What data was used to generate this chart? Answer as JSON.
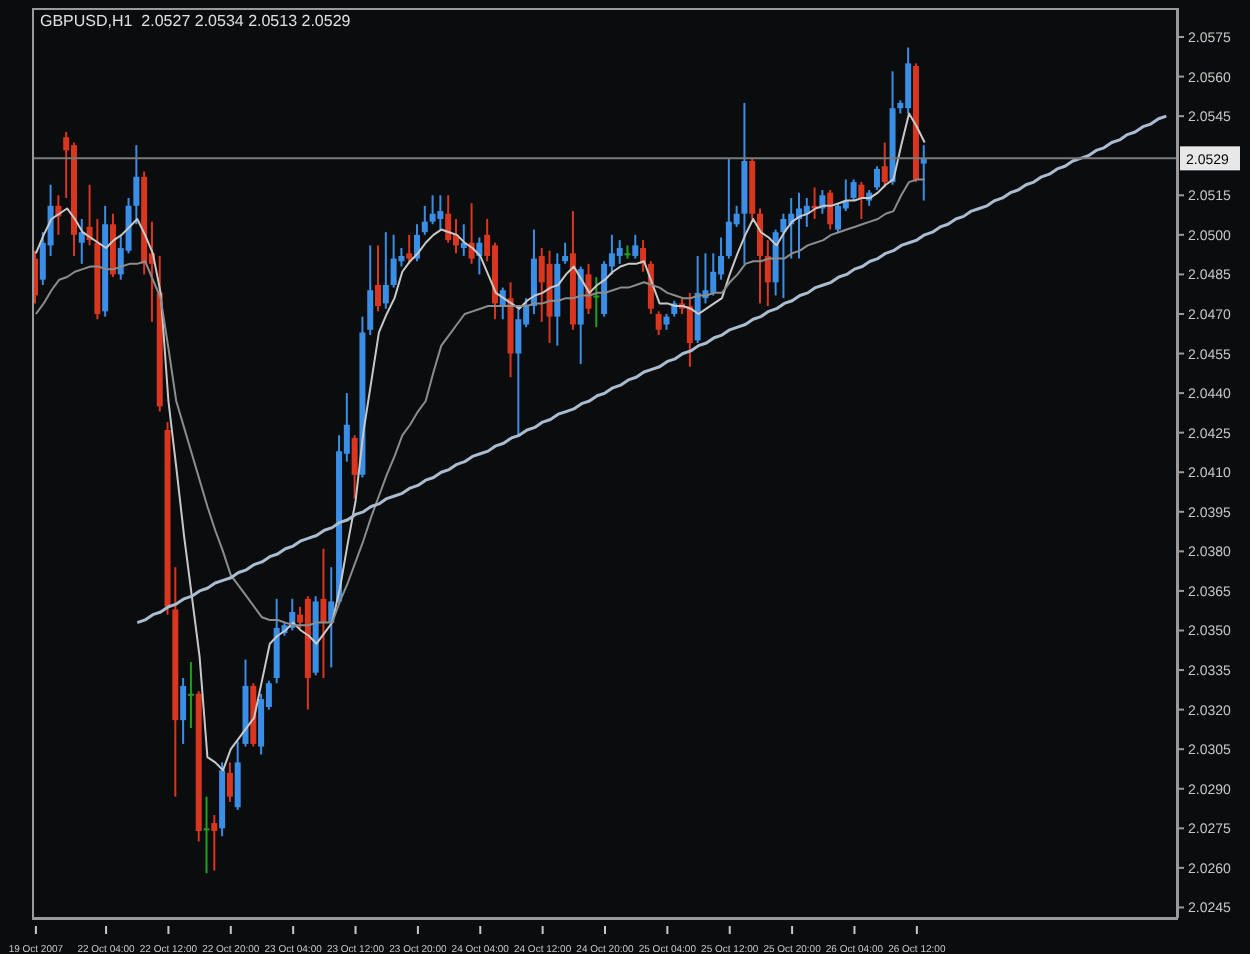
{
  "chart_data": {
    "type": "candlestick",
    "title": "GBPUSD,H1  2.0527 2.0534 2.0513 2.0529",
    "categories": [
      "19 Oct 2007",
      null,
      null,
      null,
      null,
      null,
      null,
      null,
      null,
      "22 Oct 04:00",
      null,
      null,
      null,
      null,
      null,
      null,
      null,
      "22 Oct 12:00",
      null,
      null,
      null,
      null,
      null,
      null,
      null,
      "22 Oct 20:00",
      null,
      null,
      null,
      null,
      null,
      null,
      null,
      "23 Oct 04:00",
      null,
      null,
      null,
      null,
      null,
      null,
      null,
      "23 Oct 12:00",
      null,
      null,
      null,
      null,
      null,
      null,
      null,
      "23 Oct 20:00",
      null,
      null,
      null,
      null,
      null,
      null,
      null,
      "24 Oct 04:00",
      null,
      null,
      null,
      null,
      null,
      null,
      null,
      "24 Oct 12:00",
      null,
      null,
      null,
      null,
      null,
      null,
      null,
      "24 Oct 20:00",
      null,
      null,
      null,
      null,
      null,
      null,
      null,
      "25 Oct 04:00",
      null,
      null,
      null,
      null,
      null,
      null,
      null,
      "25 Oct 12:00",
      null,
      null,
      null,
      null,
      null,
      null,
      null,
      "25 Oct 20:00",
      null,
      null,
      null,
      null,
      null,
      null,
      null,
      "26 Oct 04:00",
      null,
      null,
      null,
      null,
      null,
      null,
      null,
      "26 Oct 12:00",
      null,
      null,
      null,
      null,
      null,
      null,
      null,
      null,
      null,
      null,
      null,
      null,
      null,
      null,
      null,
      null,
      null,
      null,
      null,
      null,
      null,
      null,
      null,
      null,
      null,
      null,
      null,
      null,
      null,
      null,
      null,
      null,
      null
    ],
    "ohlc": [
      [
        2.0491,
        2.0494,
        2.0474,
        2.0477
      ],
      [
        2.0483,
        2.0501,
        2.0481,
        2.0497
      ],
      [
        2.0496,
        2.0519,
        2.0492,
        2.0511
      ],
      [
        2.0511,
        2.0515,
        2.05,
        2.0507
      ],
      [
        2.0537,
        2.0539,
        2.0514,
        2.0532
      ],
      [
        2.0534,
        2.0535,
        2.0492,
        2.05
      ],
      [
        2.0497,
        2.0506,
        2.0489,
        2.0501
      ],
      [
        2.0503,
        2.0519,
        2.0496,
        2.0498
      ],
      [
        2.0497,
        2.0506,
        2.0468,
        2.047
      ],
      [
        2.0471,
        2.0511,
        2.0469,
        2.0504
      ],
      [
        2.0504,
        2.0508,
        2.0484,
        2.0485
      ],
      [
        2.0485,
        2.05,
        2.0483,
        2.0495
      ],
      [
        2.0494,
        2.0514,
        2.0493,
        2.0511
      ],
      [
        2.0511,
        2.0534,
        2.0504,
        2.0522
      ],
      [
        2.0522,
        2.0524,
        2.0485,
        2.0489
      ],
      [
        2.0493,
        2.0505,
        2.0467,
        2.0489
      ],
      [
        2.0478,
        2.0492,
        2.0433,
        2.0435
      ],
      [
        2.0426,
        2.0429,
        2.0356,
        2.0359
      ],
      [
        2.0358,
        2.0374,
        2.0287,
        2.0316
      ],
      [
        2.0316,
        2.0332,
        2.0307,
        2.0329
      ],
      [
        2.0326,
        2.0338,
        2.0313,
        2.0326
      ],
      [
        2.0326,
        2.0327,
        2.027,
        2.0274
      ],
      [
        2.0275,
        2.0287,
        2.0258,
        2.0275
      ],
      [
        2.0277,
        2.028,
        2.0259,
        2.0274
      ],
      [
        2.0275,
        2.03,
        2.0272,
        2.0297
      ],
      [
        2.0296,
        2.03,
        2.0285,
        2.0287
      ],
      [
        2.0283,
        2.0308,
        2.0282,
        2.03
      ],
      [
        2.0307,
        2.0339,
        2.0306,
        2.0329
      ],
      [
        2.0329,
        2.033,
        2.0306,
        2.0307
      ],
      [
        2.0306,
        2.0326,
        2.0303,
        2.0324
      ],
      [
        2.0321,
        2.0331,
        2.032,
        2.033
      ],
      [
        2.0332,
        2.0362,
        2.033,
        2.0351
      ],
      [
        2.0349,
        2.0353,
        2.0348,
        2.0352
      ],
      [
        2.0351,
        2.0362,
        2.035,
        2.0357
      ],
      [
        2.0356,
        2.0359,
        2.0351,
        2.0353
      ],
      [
        2.0362,
        2.0363,
        2.032,
        2.0332
      ],
      [
        2.0334,
        2.0363,
        2.0333,
        2.0361
      ],
      [
        2.0362,
        2.0381,
        2.0332,
        2.0353
      ],
      [
        2.0353,
        2.0374,
        2.0336,
        2.0361
      ],
      [
        2.0361,
        2.0424,
        2.036,
        2.0418
      ],
      [
        2.0417,
        2.044,
        2.0414,
        2.0428
      ],
      [
        2.0423,
        2.0424,
        2.04,
        2.0409
      ],
      [
        2.0409,
        2.0469,
        2.0408,
        2.0463
      ],
      [
        2.0464,
        2.0496,
        2.0462,
        2.0479
      ],
      [
        2.0481,
        2.0496,
        2.0471,
        2.0473
      ],
      [
        2.0474,
        2.0501,
        2.0472,
        2.0481
      ],
      [
        2.0481,
        2.05,
        2.048,
        2.0491
      ],
      [
        2.049,
        2.0495,
        2.0488,
        2.0492
      ],
      [
        2.0493,
        2.05,
        2.0489,
        2.0491
      ],
      [
        2.0491,
        2.0504,
        2.049,
        2.05
      ],
      [
        2.0501,
        2.0511,
        2.05,
        2.0505
      ],
      [
        2.0505,
        2.0515,
        2.0504,
        2.0508
      ],
      [
        2.0506,
        2.0515,
        2.0502,
        2.0509
      ],
      [
        2.0508,
        2.0515,
        2.0497,
        2.0498
      ],
      [
        2.05,
        2.0506,
        2.0493,
        2.0496
      ],
      [
        2.0495,
        2.0504,
        2.0492,
        2.0497
      ],
      [
        2.0497,
        2.0512,
        2.0489,
        2.0491
      ],
      [
        2.0492,
        2.0499,
        2.0485,
        2.0497
      ],
      [
        2.05,
        2.0506,
        2.049,
        2.0492
      ],
      [
        2.0496,
        2.0497,
        2.0468,
        2.0474
      ],
      [
        2.0473,
        2.048,
        2.0468,
        2.0479
      ],
      [
        2.0476,
        2.0482,
        2.0446,
        2.0455
      ],
      [
        2.0455,
        2.0473,
        2.0424,
        2.0468
      ],
      [
        2.0466,
        2.0476,
        2.0465,
        2.0473
      ],
      [
        2.0473,
        2.0502,
        2.047,
        2.0491
      ],
      [
        2.0492,
        2.0495,
        2.0467,
        2.0482
      ],
      [
        2.0489,
        2.0494,
        2.0459,
        2.0469
      ],
      [
        2.0469,
        2.0493,
        2.0458,
        2.0489
      ],
      [
        2.049,
        2.0497,
        2.0489,
        2.0492
      ],
      [
        2.0493,
        2.0509,
        2.0464,
        2.0466
      ],
      [
        2.0466,
        2.0488,
        2.0451,
        2.0487
      ],
      [
        2.0485,
        2.0489,
        2.047,
        2.0472
      ],
      [
        2.0477,
        2.0484,
        2.0465,
        2.0477
      ],
      [
        2.047,
        2.049,
        2.0469,
        2.0489
      ],
      [
        2.0488,
        2.05,
        2.0485,
        2.0493
      ],
      [
        2.0492,
        2.0498,
        2.0489,
        2.0495
      ],
      [
        2.0493,
        2.0496,
        2.0491,
        2.0493
      ],
      [
        2.0492,
        2.05,
        2.0491,
        2.0496
      ],
      [
        2.0495,
        2.0498,
        2.0486,
        2.0489
      ],
      [
        2.0489,
        2.049,
        2.047,
        2.0472
      ],
      [
        2.047,
        2.0471,
        2.0462,
        2.0464
      ],
      [
        2.0466,
        2.047,
        2.0464,
        2.0469
      ],
      [
        2.047,
        2.0475,
        2.0469,
        2.0474
      ],
      [
        2.0474,
        2.0476,
        2.047,
        2.0472
      ],
      [
        2.0473,
        2.0478,
        2.045,
        2.0459
      ],
      [
        2.046,
        2.0492,
        2.0459,
        2.0478
      ],
      [
        2.0476,
        2.0493,
        2.0474,
        2.0479
      ],
      [
        2.0478,
        2.0493,
        2.0477,
        2.0486
      ],
      [
        2.0485,
        2.0499,
        2.0483,
        2.0492
      ],
      [
        2.0492,
        2.0529,
        2.0491,
        2.0505
      ],
      [
        2.0504,
        2.0511,
        2.0503,
        2.0508
      ],
      [
        2.0508,
        2.055,
        2.0489,
        2.0528
      ],
      [
        2.0528,
        2.0529,
        2.0506,
        2.0508
      ],
      [
        2.0508,
        2.051,
        2.0474,
        2.0492
      ],
      [
        2.0492,
        2.0498,
        2.0473,
        2.0482
      ],
      [
        2.0482,
        2.0502,
        2.0477,
        2.0501
      ],
      [
        2.0501,
        2.0508,
        2.0476,
        2.0506
      ],
      [
        2.0504,
        2.0514,
        2.0491,
        2.0508
      ],
      [
        2.0506,
        2.0516,
        2.0491,
        2.051
      ],
      [
        2.0508,
        2.0514,
        2.0503,
        2.0511
      ],
      [
        2.0511,
        2.0518,
        2.0506,
        2.051
      ],
      [
        2.051,
        2.0517,
        2.0508,
        2.0515
      ],
      [
        2.0516,
        2.0517,
        2.0502,
        2.0504
      ],
      [
        2.0502,
        2.0512,
        2.0501,
        2.0511
      ],
      [
        2.051,
        2.0521,
        2.0509,
        2.0513
      ],
      [
        2.0514,
        2.0521,
        2.0513,
        2.052
      ],
      [
        2.0519,
        2.052,
        2.0506,
        2.0514
      ],
      [
        2.0513,
        2.0517,
        2.0511,
        2.0516
      ],
      [
        2.0518,
        2.0526,
        2.0517,
        2.0525
      ],
      [
        2.0526,
        2.0535,
        2.0518,
        2.052
      ],
      [
        2.052,
        2.0562,
        2.0519,
        2.0548
      ],
      [
        2.0548,
        2.0551,
        2.0546,
        2.055
      ],
      [
        2.0548,
        2.0571,
        2.0546,
        2.0565
      ],
      [
        2.0564,
        2.0565,
        2.052,
        2.0521
      ],
      [
        2.0527,
        2.0534,
        2.0513,
        2.0529
      ],
      null,
      null,
      null,
      null,
      null,
      null,
      null,
      null,
      null,
      null,
      null,
      null,
      null,
      null,
      null,
      null,
      null,
      null,
      null,
      null,
      null,
      null,
      null,
      null,
      null,
      null,
      null,
      null,
      null,
      null,
      null,
      null
    ],
    "colors": [
      "#d8361f",
      "#3a8ee6",
      "#3a8ee6",
      "#d8361f",
      "#d8361f",
      "#d8361f",
      "#3a8ee6",
      "#d8361f",
      "#d8361f",
      "#3a8ee6",
      "#d8361f",
      "#3a8ee6",
      "#3a8ee6",
      "#3a8ee6",
      "#d8361f",
      "#d8361f",
      "#d8361f",
      "#d8361f",
      "#d8361f",
      "#3a8ee6",
      "#22a022",
      "#d8361f",
      "#22a022",
      "#d8361f",
      "#3a8ee6",
      "#d8361f",
      "#3a8ee6",
      "#3a8ee6",
      "#d8361f",
      "#3a8ee6",
      "#3a8ee6",
      "#3a8ee6",
      "#3a8ee6",
      "#3a8ee6",
      "#d8361f",
      "#d8361f",
      "#3a8ee6",
      "#d8361f",
      "#3a8ee6",
      "#3a8ee6",
      "#3a8ee6",
      "#d8361f",
      "#3a8ee6",
      "#3a8ee6",
      "#d8361f",
      "#3a8ee6",
      "#3a8ee6",
      "#3a8ee6",
      "#d8361f",
      "#3a8ee6",
      "#3a8ee6",
      "#3a8ee6",
      "#3a8ee6",
      "#d8361f",
      "#d8361f",
      "#3a8ee6",
      "#d8361f",
      "#3a8ee6",
      "#d8361f",
      "#d8361f",
      "#3a8ee6",
      "#d8361f",
      "#3a8ee6",
      "#3a8ee6",
      "#3a8ee6",
      "#d8361f",
      "#d8361f",
      "#3a8ee6",
      "#3a8ee6",
      "#d8361f",
      "#3a8ee6",
      "#d8361f",
      "#22a022",
      "#3a8ee6",
      "#3a8ee6",
      "#3a8ee6",
      "#22a022",
      "#3a8ee6",
      "#d8361f",
      "#d8361f",
      "#d8361f",
      "#3a8ee6",
      "#3a8ee6",
      "#d8361f",
      "#d8361f",
      "#3a8ee6",
      "#3a8ee6",
      "#3a8ee6",
      "#3a8ee6",
      "#3a8ee6",
      "#3a8ee6",
      "#3a8ee6",
      "#d8361f",
      "#d8361f",
      "#d8361f",
      "#3a8ee6",
      "#3a8ee6",
      "#3a8ee6",
      "#3a8ee6",
      "#3a8ee6",
      "#d8361f",
      "#3a8ee6",
      "#d8361f",
      "#3a8ee6",
      "#3a8ee6",
      "#3a8ee6",
      "#d8361f",
      "#3a8ee6",
      "#3a8ee6",
      "#d8361f",
      "#3a8ee6",
      "#3a8ee6",
      "#3a8ee6",
      "#d8361f",
      "#3a8ee6",
      null,
      null,
      null,
      null,
      null,
      null,
      null,
      null,
      null,
      null,
      null,
      null,
      null,
      null,
      null,
      null,
      null,
      null,
      null,
      null,
      null,
      null,
      null,
      null,
      null,
      null,
      null,
      null,
      null,
      null,
      null,
      null
    ],
    "series": [
      {
        "type": "line",
        "color": "#c8c8c8",
        "values": [
          2.0493,
          2.05,
          2.0506,
          2.0508,
          2.051,
          2.0506,
          2.0501,
          2.0499,
          2.0497,
          2.0495,
          2.0498,
          2.05,
          2.0503,
          2.0506,
          2.05,
          2.0493,
          2.0478,
          2.0437,
          2.0412,
          2.0386,
          2.0363,
          2.034,
          2.0302,
          2.03,
          2.0297,
          2.0305,
          2.0309,
          2.0313,
          2.0317,
          2.0331,
          2.0345,
          2.0348,
          2.035,
          2.0353,
          2.035,
          2.0348,
          2.0345,
          2.0349,
          2.0353,
          2.0366,
          2.0383,
          2.0399,
          2.0425,
          2.0444,
          2.0463,
          2.047,
          2.0476,
          2.0486,
          2.049,
          2.0493,
          2.0497,
          2.05,
          2.0502,
          2.0501,
          2.05,
          2.0497,
          2.0495,
          2.0492,
          2.0485,
          2.0478,
          2.0476,
          2.0474,
          2.0472,
          2.0475,
          2.0477,
          2.0478,
          2.048,
          2.0481,
          2.0485,
          2.0488,
          2.0483,
          2.0478,
          2.0481,
          2.0483,
          2.0486,
          2.0488,
          2.0489,
          2.0489,
          2.049,
          2.0482,
          2.0474,
          2.0474,
          2.0473,
          2.0473,
          2.0472,
          2.047,
          2.0472,
          2.0474,
          2.0476,
          2.0485,
          2.0493,
          2.05,
          2.0506,
          2.0501,
          2.0499,
          2.0496,
          2.0501,
          2.0505,
          2.0507,
          2.0508,
          2.051,
          2.0511,
          2.0511,
          2.0512,
          2.0513,
          2.0513,
          2.0514,
          2.0514,
          2.0516,
          2.0519,
          2.0521,
          2.0534,
          2.0546,
          2.0541,
          2.0535,
          null,
          null,
          null,
          null,
          null,
          null,
          null,
          null,
          null,
          null,
          null,
          null,
          null,
          null,
          null,
          null,
          null,
          null,
          null,
          null,
          null,
          null,
          null,
          null,
          null,
          null,
          null,
          null,
          null,
          null,
          null,
          null
        ]
      },
      {
        "type": "line",
        "color": "#8c8c8c",
        "values": [
          2.047,
          2.0474,
          2.0479,
          2.0483,
          2.0484,
          2.0486,
          2.0487,
          2.0488,
          2.0488,
          2.0487,
          2.0487,
          2.0488,
          2.0489,
          2.0489,
          2.049,
          2.0483,
          2.0476,
          2.0457,
          2.0437,
          2.0427,
          2.0417,
          2.0407,
          2.0397,
          2.0388,
          2.038,
          2.0371,
          2.0367,
          2.0363,
          2.0359,
          2.0355,
          2.0354,
          2.0354,
          2.0353,
          2.0352,
          2.0352,
          2.0352,
          2.0353,
          2.0353,
          2.0353,
          2.0361,
          2.0368,
          2.0376,
          2.0384,
          2.0393,
          2.0401,
          2.0409,
          2.0416,
          2.0424,
          2.0428,
          2.0433,
          2.0437,
          2.0448,
          2.0458,
          2.0462,
          2.0466,
          2.047,
          2.0471,
          2.0472,
          2.0473,
          2.0473,
          2.0473,
          2.0473,
          2.0473,
          2.0473,
          2.0474,
          2.0474,
          2.0475,
          2.0475,
          2.0476,
          2.0476,
          2.0477,
          2.0477,
          2.0478,
          2.0478,
          2.0479,
          2.048,
          2.048,
          2.0481,
          2.0482,
          2.0481,
          2.048,
          2.0478,
          2.0477,
          2.0476,
          2.0476,
          2.0477,
          2.0477,
          2.0478,
          2.0478,
          2.0482,
          2.0485,
          2.0489,
          2.049,
          2.049,
          2.0491,
          2.0491,
          2.0491,
          2.0493,
          2.0494,
          2.0496,
          2.0497,
          2.0498,
          2.05,
          2.0501,
          2.0502,
          2.0503,
          2.0504,
          2.0505,
          2.0506,
          2.0508,
          2.0509,
          2.0515,
          2.052,
          2.0521,
          2.0521,
          null,
          null,
          null,
          null,
          null,
          null,
          null,
          null,
          null,
          null,
          null,
          null,
          null,
          null,
          null,
          null,
          null,
          null,
          null,
          null,
          null,
          null,
          null,
          null,
          null,
          null,
          null,
          null,
          null,
          null,
          null,
          null
        ]
      },
      {
        "type": "line",
        "color": "#a9bcd0",
        "values": [
          null,
          null,
          null,
          null,
          null,
          null,
          null,
          null,
          null,
          null,
          null,
          null,
          null,
          2.0353,
          2.0354,
          2.0356,
          2.0357,
          2.0359,
          2.036,
          2.0362,
          2.0363,
          2.0365,
          2.0366,
          2.0368,
          2.0369,
          2.037,
          2.0372,
          2.0373,
          2.0375,
          2.0376,
          2.0378,
          2.0379,
          2.0381,
          2.0382,
          2.0384,
          2.0385,
          2.0386,
          2.0388,
          2.0389,
          2.0391,
          2.0392,
          2.0394,
          2.0395,
          2.0397,
          2.0398,
          2.04,
          2.0401,
          2.0402,
          2.0404,
          2.0405,
          2.0407,
          2.0408,
          2.041,
          2.0411,
          2.0413,
          2.0414,
          2.0416,
          2.0417,
          2.0418,
          2.042,
          2.0421,
          2.0423,
          2.0424,
          2.0426,
          2.0427,
          2.0429,
          2.043,
          2.0432,
          2.0433,
          2.0434,
          2.0436,
          2.0437,
          2.0439,
          2.044,
          2.0442,
          2.0443,
          2.0445,
          2.0446,
          2.0448,
          2.0449,
          2.045,
          2.0452,
          2.0453,
          2.0455,
          2.0456,
          2.0458,
          2.0459,
          2.0461,
          2.0462,
          2.0464,
          2.0465,
          2.0466,
          2.0468,
          2.0469,
          2.0471,
          2.0472,
          2.0474,
          2.0475,
          2.0477,
          2.0478,
          2.048,
          2.0481,
          2.0482,
          2.0484,
          2.0485,
          2.0487,
          2.0488,
          2.049,
          2.0491,
          2.0493,
          2.0494,
          2.0496,
          2.0497,
          2.0498,
          2.05,
          2.0501,
          2.0503,
          2.0504,
          2.0506,
          2.0507,
          2.0509,
          2.051,
          2.0511,
          2.0513,
          2.0514,
          2.0516,
          2.0517,
          2.0519,
          2.052,
          2.0522,
          2.0523,
          2.0525,
          2.0526,
          2.0528,
          2.0529,
          2.053,
          2.0532,
          2.0533,
          2.0535,
          2.0536,
          2.0538,
          2.0539,
          2.0541,
          2.0542,
          2.0544,
          2.0545,
          null
        ]
      }
    ],
    "ylim": [
      2.0241,
      2.0586
    ],
    "yticks": [
      2.0575,
      {
        "value": 2.056,
        "label": "2.0560"
      },
      2.0545,
      2.0515,
      {
        "value": 2.05,
        "label": "2.0500"
      },
      2.0485,
      {
        "value": 2.047,
        "label": "2.0470"
      },
      2.0455,
      {
        "value": 2.044,
        "label": "2.0440"
      },
      2.0425,
      {
        "value": 2.041,
        "label": "2.0410"
      },
      2.0395,
      {
        "value": 2.038,
        "label": "2.0380"
      },
      2.0365,
      {
        "value": 2.035,
        "label": "2.0350"
      },
      2.0335,
      {
        "value": 2.032,
        "label": "2.0320"
      },
      2.0305,
      {
        "value": 2.029,
        "label": "2.0290"
      },
      2.0275,
      {
        "value": 2.026,
        "label": "2.0260"
      },
      2.0245
    ],
    "ref_lines": [
      {
        "axis": "y",
        "value": 2.0529,
        "label": "2.0529",
        "color": "#7a7a7a"
      }
    ]
  }
}
